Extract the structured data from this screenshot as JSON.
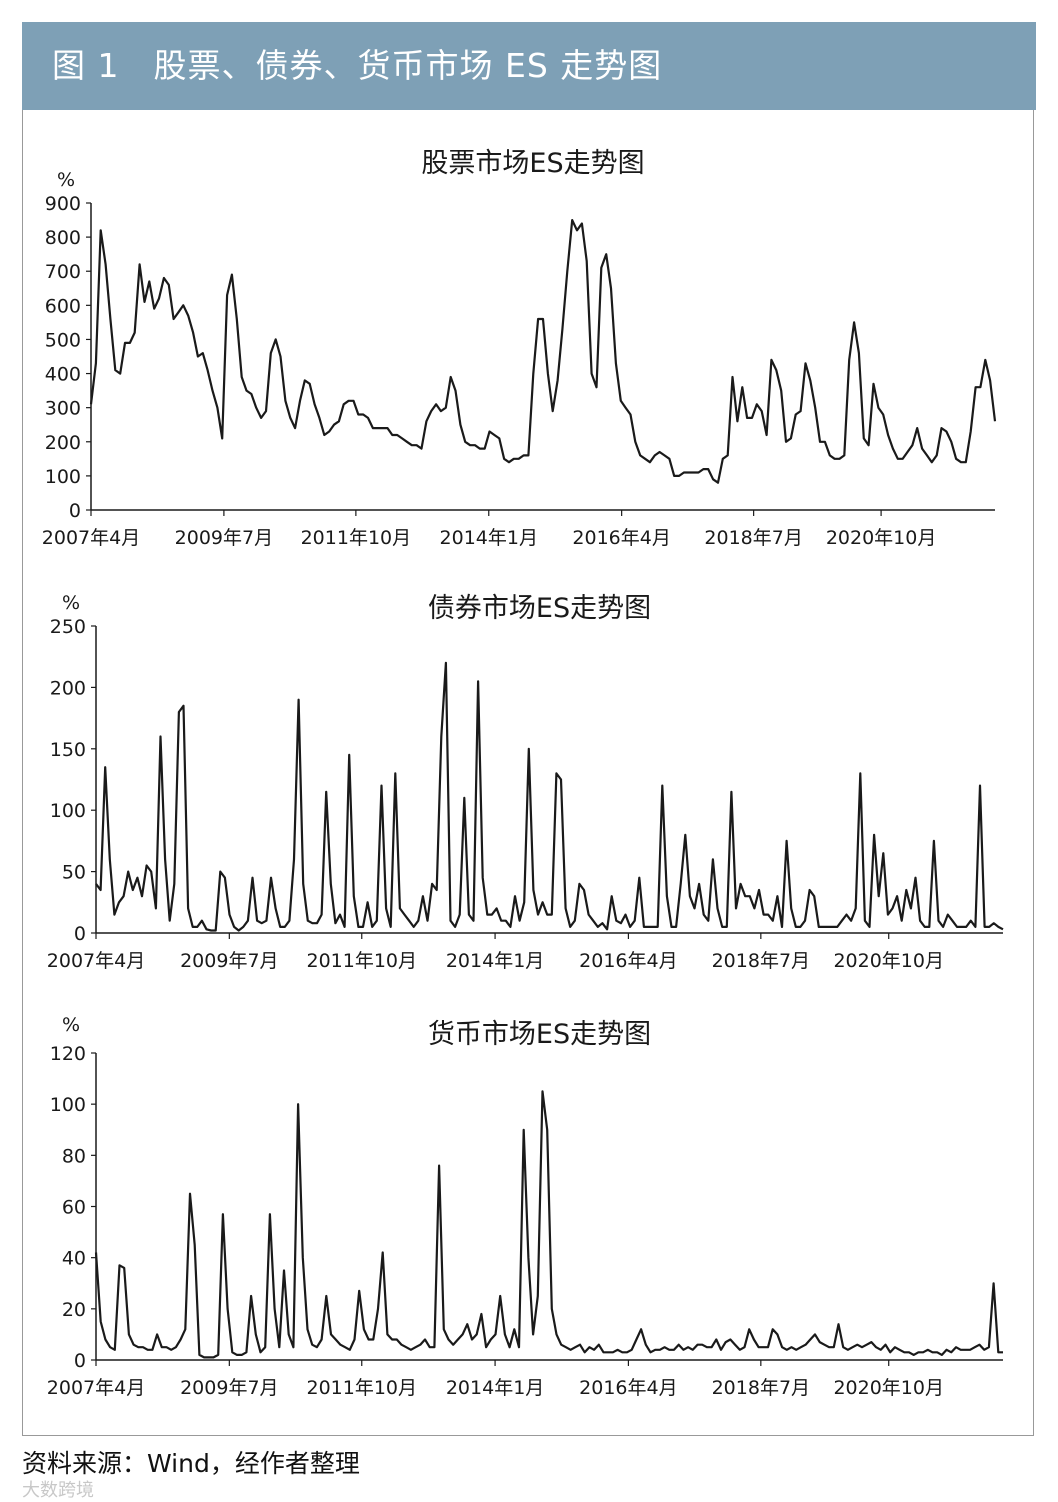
{
  "figure": {
    "title": "图 1　股票、债券、货币市场 ES 走势图",
    "source": "资料来源：Wind，经作者整理",
    "watermark": "大数跨境"
  },
  "chart_data": [
    {
      "type": "line",
      "title": "股票市场ES走势图",
      "unit": "%",
      "ylim": [
        0,
        900
      ],
      "yticks": [
        0,
        100,
        200,
        300,
        400,
        500,
        600,
        700,
        800,
        900
      ],
      "xticks": [
        "2007年4月",
        "2009年7月",
        "2011年10月",
        "2014年1月",
        "2016年4月",
        "2018年7月",
        "2020年10月"
      ],
      "x_range": [
        "2007-04",
        "2022-09"
      ],
      "series": [
        {
          "color": "#1a1a1a",
          "values": [
            310,
            430,
            820,
            720,
            560,
            410,
            400,
            490,
            490,
            520,
            720,
            610,
            670,
            590,
            620,
            680,
            660,
            560,
            580,
            600,
            570,
            520,
            450,
            460,
            410,
            350,
            300,
            210,
            630,
            690,
            560,
            390,
            350,
            340,
            300,
            270,
            290,
            460,
            500,
            450,
            320,
            270,
            240,
            320,
            380,
            370,
            310,
            270,
            220,
            230,
            250,
            260,
            310,
            320,
            320,
            280,
            280,
            270,
            240,
            240,
            240,
            240,
            220,
            220,
            210,
            200,
            190,
            190,
            180,
            260,
            290,
            310,
            290,
            300,
            390,
            350,
            250,
            200,
            190,
            190,
            180,
            180,
            230,
            220,
            210,
            150,
            140,
            150,
            150,
            160,
            160,
            400,
            560,
            560,
            400,
            290,
            380,
            530,
            700,
            850,
            820,
            840,
            730,
            400,
            360,
            710,
            750,
            650,
            430,
            320,
            300,
            280,
            200,
            160,
            150,
            140,
            160,
            170,
            160,
            150,
            100,
            100,
            110,
            110,
            110,
            110,
            120,
            120,
            90,
            80,
            150,
            160,
            390,
            260,
            360,
            270,
            270,
            310,
            290,
            220,
            440,
            410,
            350,
            200,
            210,
            280,
            290,
            430,
            380,
            300,
            200,
            200,
            160,
            150,
            150,
            160,
            440,
            550,
            460,
            210,
            190,
            370,
            300,
            280,
            220,
            180,
            150,
            150,
            170,
            190,
            240,
            180,
            160,
            140,
            160,
            240,
            230,
            200,
            150,
            140,
            140,
            230,
            360,
            360,
            440,
            380,
            260
          ]
        }
      ]
    },
    {
      "type": "line",
      "title": "债券市场ES走势图",
      "unit": "%",
      "ylim": [
        0,
        250
      ],
      "yticks": [
        0,
        50,
        100,
        150,
        200,
        250
      ],
      "xticks": [
        "2007年4月",
        "2009年7月",
        "2011年10月",
        "2014年1月",
        "2016年4月",
        "2018年7月",
        "2020年10月"
      ],
      "x_range": [
        "2007-04",
        "2022-09"
      ],
      "series": [
        {
          "color": "#1a1a1a",
          "values": [
            40,
            35,
            135,
            60,
            15,
            25,
            30,
            50,
            35,
            45,
            30,
            55,
            50,
            20,
            160,
            60,
            10,
            40,
            180,
            185,
            20,
            5,
            5,
            10,
            3,
            2,
            2,
            50,
            45,
            15,
            5,
            2,
            5,
            10,
            45,
            10,
            8,
            10,
            45,
            20,
            5,
            5,
            10,
            60,
            190,
            40,
            10,
            8,
            8,
            15,
            115,
            40,
            8,
            15,
            5,
            145,
            30,
            5,
            5,
            25,
            5,
            10,
            120,
            20,
            5,
            130,
            20,
            15,
            10,
            5,
            10,
            30,
            10,
            40,
            35,
            160,
            220,
            10,
            5,
            15,
            110,
            15,
            10,
            205,
            45,
            15,
            15,
            20,
            10,
            10,
            5,
            30,
            10,
            25,
            150,
            35,
            15,
            25,
            15,
            15,
            130,
            125,
            20,
            5,
            10,
            40,
            35,
            15,
            10,
            5,
            8,
            3,
            30,
            10,
            8,
            15,
            5,
            10,
            45,
            5,
            5,
            5,
            5,
            120,
            30,
            5,
            5,
            40,
            80,
            30,
            20,
            40,
            15,
            10,
            60,
            20,
            5,
            5,
            115,
            20,
            40,
            30,
            30,
            20,
            35,
            15,
            15,
            10,
            30,
            5,
            75,
            20,
            5,
            5,
            10,
            35,
            30,
            5,
            5,
            5,
            5,
            5,
            10,
            15,
            10,
            20,
            130,
            10,
            5,
            80,
            30,
            65,
            15,
            20,
            30,
            10,
            35,
            20,
            45,
            10,
            5,
            5,
            75,
            10,
            5,
            15,
            10,
            5,
            5,
            5,
            10,
            5,
            120,
            5,
            5,
            8,
            5,
            3
          ]
        }
      ]
    },
    {
      "type": "line",
      "title": "货币市场ES走势图",
      "unit": "%",
      "ylim": [
        0,
        120
      ],
      "yticks": [
        0,
        20,
        40,
        60,
        80,
        100,
        120
      ],
      "xticks": [
        "2007年4月",
        "2009年7月",
        "2011年10月",
        "2014年1月",
        "2016年4月",
        "2018年7月",
        "2020年10月"
      ],
      "x_range": [
        "2007-04",
        "2022-09"
      ],
      "series": [
        {
          "color": "#1a1a1a",
          "values": [
            42,
            15,
            8,
            5,
            4,
            37,
            36,
            10,
            6,
            5,
            5,
            4,
            4,
            10,
            5,
            5,
            4,
            5,
            8,
            12,
            65,
            45,
            2,
            1,
            1,
            1,
            2,
            57,
            20,
            3,
            2,
            2,
            3,
            25,
            10,
            3,
            5,
            57,
            20,
            5,
            35,
            10,
            5,
            100,
            40,
            12,
            6,
            5,
            8,
            25,
            10,
            8,
            6,
            5,
            4,
            8,
            27,
            12,
            8,
            8,
            20,
            42,
            10,
            8,
            8,
            6,
            5,
            4,
            5,
            6,
            8,
            5,
            5,
            76,
            12,
            8,
            6,
            8,
            10,
            14,
            8,
            10,
            18,
            5,
            8,
            10,
            25,
            10,
            5,
            12,
            5,
            90,
            40,
            10,
            25,
            105,
            90,
            20,
            10,
            6,
            5,
            4,
            5,
            6,
            3,
            5,
            4,
            6,
            3,
            3,
            3,
            4,
            3,
            3,
            4,
            8,
            12,
            6,
            3,
            4,
            4,
            5,
            4,
            4,
            6,
            4,
            5,
            4,
            6,
            6,
            5,
            5,
            8,
            4,
            7,
            8,
            6,
            4,
            5,
            12,
            8,
            5,
            5,
            5,
            12,
            10,
            5,
            4,
            5,
            4,
            5,
            6,
            8,
            10,
            7,
            6,
            5,
            5,
            14,
            5,
            4,
            5,
            6,
            5,
            6,
            7,
            5,
            4,
            6,
            3,
            5,
            4,
            3,
            3,
            2,
            3,
            3,
            4,
            3,
            3,
            2,
            4,
            3,
            5,
            4,
            4,
            4,
            5,
            6,
            4,
            5,
            30,
            3,
            3
          ]
        }
      ]
    }
  ]
}
